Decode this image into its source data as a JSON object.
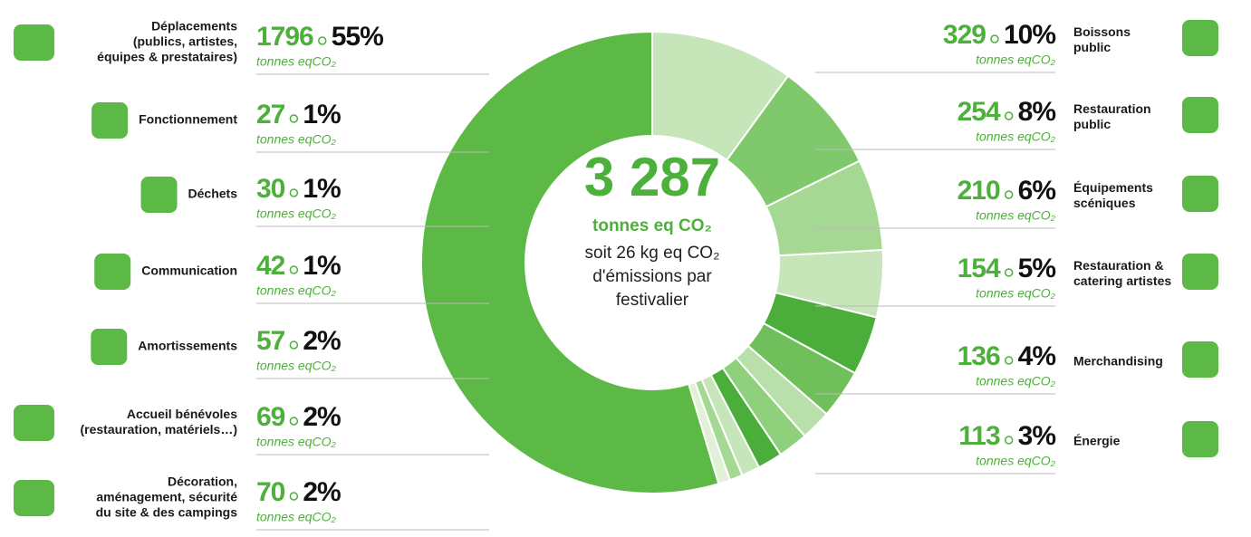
{
  "chart_data": {
    "type": "donut",
    "total": 3287,
    "total_label": "3 287",
    "center_unit": "tonnes eq CO₂",
    "center_lines": [
      "soit 26 kg eq CO₂",
      "d'émissions par",
      "festivalier"
    ],
    "unit": "tonnes eqCO₂",
    "categories": [
      [
        "Boissons",
        "public"
      ],
      [
        "Restauration",
        "public"
      ],
      [
        "Équipements",
        "scéniques"
      ],
      [
        "Restauration &",
        "catering artistes"
      ],
      [
        "Merchandising"
      ],
      [
        "Énergie"
      ],
      [
        "Décoration,",
        "aménagement, sécurité",
        "du site & des campings"
      ],
      [
        "Accueil bénévoles",
        "(restauration, matériels…)"
      ],
      [
        "Amortissements"
      ],
      [
        "Communication"
      ],
      [
        "Déchets"
      ],
      [
        "Fonctionnement"
      ],
      [
        "Déplacements",
        "(publics, artistes,",
        "équipes & prestataires)"
      ]
    ],
    "values": [
      329,
      254,
      210,
      154,
      136,
      113,
      70,
      69,
      57,
      42,
      30,
      27,
      1796
    ],
    "shares": [
      10,
      8,
      6,
      5,
      4,
      3,
      2,
      2,
      2,
      1,
      1,
      1,
      55
    ],
    "share_labels": [
      "10%",
      "8%",
      "6%",
      "5%",
      "4%",
      "3%",
      "2%",
      "2%",
      "2%",
      "1%",
      "1%",
      "1%",
      "55%"
    ],
    "colors": [
      "#c6e6b9",
      "#7fc86c",
      "#a5d893",
      "#c6e6b9",
      "#4cae3a",
      "#6fc05a",
      "#b9e0aa",
      "#8fd07c",
      "#4cae3a",
      "#c6e6b9",
      "#a5d893",
      "#e0f1d8",
      "#5cb946"
    ]
  }
}
